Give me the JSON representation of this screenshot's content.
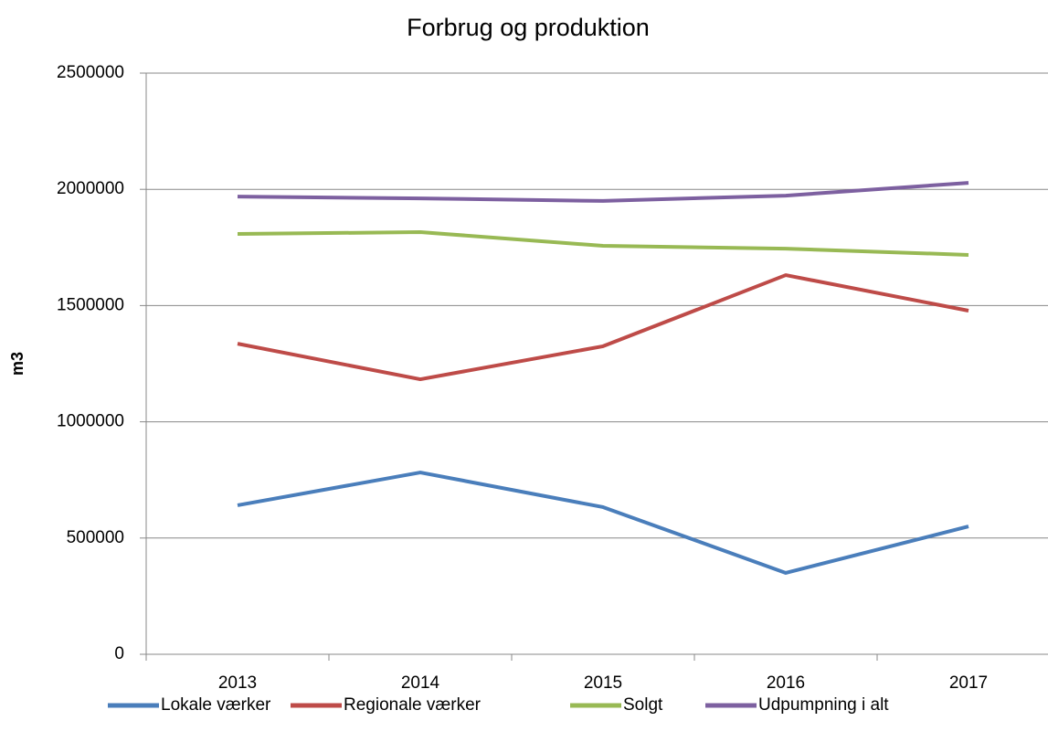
{
  "chart_data": {
    "type": "line",
    "title": "Forbrug og produktion",
    "y_label": "m3",
    "categories": [
      "2013",
      "2014",
      "2015",
      "2016",
      "2017"
    ],
    "series": [
      {
        "name": "Lokale værker",
        "color": "#4a7ebb",
        "values": [
          641000,
          782000,
          633000,
          350000,
          550000
        ]
      },
      {
        "name": "Regionale værker",
        "color": "#be4b48",
        "values": [
          1336000,
          1183000,
          1325000,
          1631000,
          1478000
        ]
      },
      {
        "name": "Solgt",
        "color": "#98b954",
        "values": [
          1808000,
          1816000,
          1757000,
          1745000,
          1718000
        ]
      },
      {
        "name": "Udpumpning i alt",
        "color": "#7d60a0",
        "values": [
          1969000,
          1961000,
          1950000,
          1973000,
          2028000
        ]
      }
    ],
    "ylim": [
      0,
      2500000
    ],
    "yticks": [
      0,
      500000,
      1000000,
      1500000,
      2000000,
      2500000
    ],
    "grid": true,
    "legend": "bottom"
  }
}
